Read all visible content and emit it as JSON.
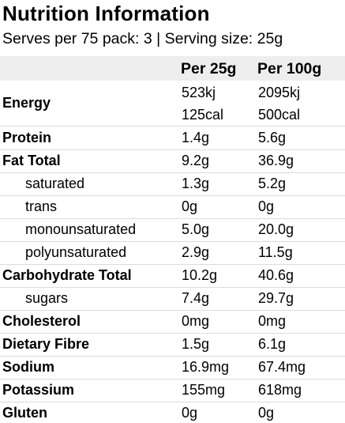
{
  "title": "Nutrition Information",
  "subtitle": "Serves per 75 pack: 3 | Serving size: 25g",
  "columns": {
    "per_serving": "Per 25g",
    "per_100": "Per 100g"
  },
  "energy": {
    "label": "Energy",
    "per_serving_kj": "523kj",
    "per_100_kj": "2095kj",
    "per_serving_cal": "125cal",
    "per_100_cal": "500cal"
  },
  "rows": [
    {
      "label": "Protein",
      "per_serving": "1.4g",
      "per_100": "5.6g"
    },
    {
      "label": "Fat Total",
      "per_serving": "9.2g",
      "per_100": "36.9g"
    },
    {
      "label": "saturated",
      "per_serving": "1.3g",
      "per_100": "5.2g"
    },
    {
      "label": "trans",
      "per_serving": "0g",
      "per_100": "0g"
    },
    {
      "label": "monounsaturated",
      "per_serving": "5.0g",
      "per_100": "20.0g"
    },
    {
      "label": "polyunsaturated",
      "per_serving": "2.9g",
      "per_100": "11.5g"
    },
    {
      "label": "Carbohydrate Total",
      "per_serving": "10.2g",
      "per_100": "40.6g"
    },
    {
      "label": "sugars",
      "per_serving": "7.4g",
      "per_100": "29.7g"
    },
    {
      "label": "Cholesterol",
      "per_serving": "0mg",
      "per_100": "0mg"
    },
    {
      "label": "Dietary Fibre",
      "per_serving": "1.5g",
      "per_100": "6.1g"
    },
    {
      "label": "Sodium",
      "per_serving": "16.9mg",
      "per_100": "67.4mg"
    },
    {
      "label": "Potassium",
      "per_serving": "155mg",
      "per_100": "618mg"
    },
    {
      "label": "Gluten",
      "per_serving": "0g",
      "per_100": "0g"
    }
  ]
}
